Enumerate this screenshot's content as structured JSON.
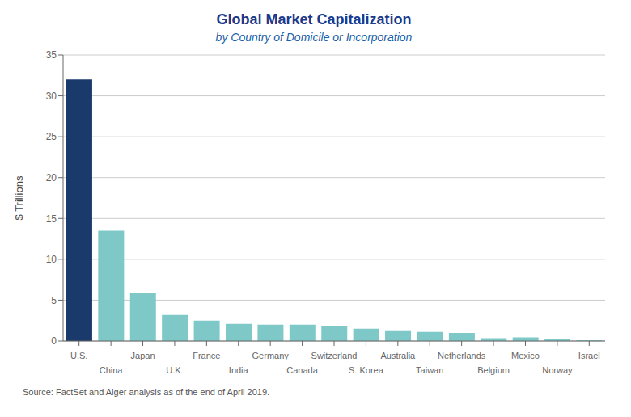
{
  "chart_data": {
    "type": "bar",
    "title": "Global Market Capitalization",
    "subtitle": "by Country of Domicile or Incorporation",
    "ylabel": "$ Trillions",
    "annotations": [
      "Source: FactSet and Alger analysis as of the end of April 2019."
    ],
    "categories": [
      "U.S.",
      "China",
      "Japan",
      "U.K.",
      "France",
      "India",
      "Germany",
      "Canada",
      "Switzerland",
      "S. Korea",
      "Australia",
      "Taiwan",
      "Netherlands",
      "Belgium",
      "Mexico",
      "Norway",
      "Israel"
    ],
    "values": [
      32.0,
      13.5,
      5.9,
      3.2,
      2.5,
      2.1,
      2.0,
      2.0,
      1.8,
      1.5,
      1.3,
      1.1,
      1.0,
      0.35,
      0.45,
      0.25,
      0.1
    ],
    "colors": [
      "#1a3a6b",
      "#7ec8c8",
      "#7ec8c8",
      "#7ec8c8",
      "#7ec8c8",
      "#7ec8c8",
      "#7ec8c8",
      "#7ec8c8",
      "#7ec8c8",
      "#7ec8c8",
      "#7ec8c8",
      "#7ec8c8",
      "#7ec8c8",
      "#7ec8c8",
      "#7ec8c8",
      "#7ec8c8",
      "#7ec8c8"
    ],
    "ylim": [
      0,
      35
    ],
    "yticks": [
      0,
      5,
      10,
      15,
      20,
      25,
      30,
      35
    ],
    "grid": true
  }
}
